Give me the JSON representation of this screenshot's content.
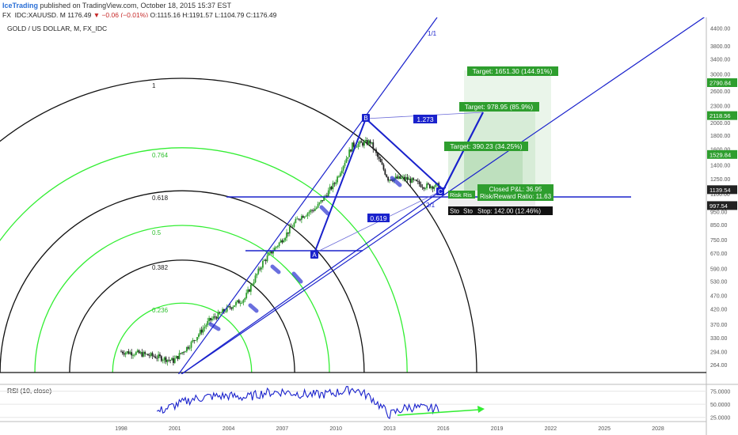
{
  "header": {
    "brand": "IceTrading",
    "published": "published on TradingView.com, October 18, 2015 15:37 EST",
    "symbol": "FX_IDC:XAUUSD, M",
    "last": "1176.49",
    "change": "▼ −0.06 (−0.01%)",
    "ohlc": "O:1115.16 H:1191.57 L:1104.79 C:1176.49"
  },
  "chart_data": [
    {
      "type": "candlestick",
      "title": "GOLD / US DOLLAR, M, FX_IDC",
      "x": [
        1998,
        1999,
        2000,
        2001,
        2002,
        2003,
        2004,
        2005,
        2006,
        2007,
        2008,
        2009,
        2010,
        2011,
        2012,
        2013,
        2014,
        2015
      ],
      "y": [
        294,
        290,
        282,
        272,
        315,
        380,
        420,
        460,
        620,
        740,
        900,
        980,
        1200,
        1650,
        1700,
        1250,
        1250,
        1176.49
      ],
      "xtick_labels": [
        "1998",
        "2001",
        "2004",
        "2007",
        "2010",
        "2013",
        "2016",
        "2019",
        "2022",
        "2025",
        "2028"
      ],
      "ytick_labels": [
        "4400.00",
        "3800.00",
        "3400.00",
        "3000.00",
        "2600.00",
        "2300.00",
        "2000.00",
        "1800.00",
        "1600.00",
        "1400.00",
        "1250.00",
        "1100.00",
        "950.00",
        "850.00",
        "750.00",
        "670.00",
        "590.00",
        "530.00",
        "470.00",
        "420.00",
        "370.00",
        "330.00",
        "294.00",
        "264.00"
      ],
      "scale": "log",
      "ylim": [
        250,
        4600
      ],
      "price_tags": [
        {
          "value": "2790.84",
          "color": "#2e9e2e"
        },
        {
          "value": "2118.56",
          "color": "#2e9e2e"
        },
        {
          "value": "1529.84",
          "color": "#2e9e2e"
        },
        {
          "value": "1139.54",
          "color": "#222222"
        },
        {
          "value": "997.54",
          "color": "#222222"
        }
      ],
      "fib_arcs": [
        {
          "label": "0.236",
          "color": "#33ee33"
        },
        {
          "label": "0.382",
          "color": "#111111"
        },
        {
          "label": "0.5",
          "color": "#33ee33"
        },
        {
          "label": "0.618",
          "color": "#111111"
        },
        {
          "label": "0.764",
          "color": "#33ee33"
        },
        {
          "label": "1",
          "color": "#111111"
        }
      ],
      "fan_labels": [
        "1/1",
        "2/1"
      ],
      "pattern_points": [
        "A",
        "B",
        "C"
      ],
      "ratios": [
        "1.273",
        "0.619"
      ],
      "targets": [
        "Target: 1651.30 (144.91%)",
        "Target: 978.95 (85.9%)",
        "Target: 390.23 (34.25%)"
      ],
      "pnl_box": [
        "Closed P&L: 36.95",
        "Risk/Reward Ratio: 11.63"
      ],
      "risk_labels": [
        "Risk",
        "Ris"
      ],
      "stop_labels": [
        "Sto",
        "Sto",
        "Stop: 142.00 (12.46%)"
      ],
      "colors": {
        "up": "#2e9e2e",
        "down": "#222222",
        "lines": "#1a22cc",
        "fib_green": "#33ee33",
        "target": "#2e9e2e"
      }
    },
    {
      "type": "line",
      "title": "RSI (10, close)",
      "x": [
        2000,
        2001,
        2002,
        2003,
        2004,
        2005,
        2006,
        2007,
        2008,
        2009,
        2010,
        2011,
        2012,
        2013,
        2014,
        2015
      ],
      "y": [
        35,
        48,
        60,
        65,
        66,
        63,
        72,
        74,
        70,
        68,
        72,
        80,
        62,
        30,
        45,
        42
      ],
      "ytick_labels": [
        "75.0000",
        "50.0000",
        "25.0000"
      ],
      "ylim": [
        20,
        85
      ]
    }
  ]
}
